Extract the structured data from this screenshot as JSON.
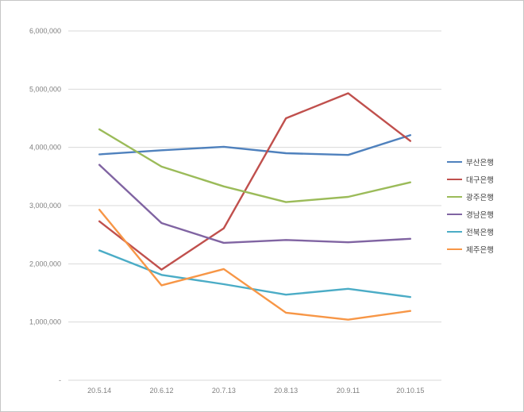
{
  "chart_data": {
    "type": "line",
    "title": "",
    "xlabel": "",
    "ylabel": "",
    "grid": true,
    "legend_position": "right",
    "ylim": [
      0,
      6000000
    ],
    "ytick_step": 1000000,
    "ytick_labels": [
      "-",
      "1,000,000",
      "2,000,000",
      "3,000,000",
      "4,000,000",
      "5,000,000",
      "6,000,000"
    ],
    "x": [
      "20.5.14",
      "20.6.12",
      "20.7.13",
      "20.8.13",
      "20.9.11",
      "20.10.15"
    ],
    "series": [
      {
        "name": "부산은행",
        "color": "#4F81BD",
        "values": [
          3880000,
          3950000,
          4010000,
          3900000,
          3870000,
          4210000
        ]
      },
      {
        "name": "대구은행",
        "color": "#C0504D",
        "values": [
          2730000,
          1900000,
          2610000,
          4500000,
          4930000,
          4110000
        ]
      },
      {
        "name": "광주은행",
        "color": "#9BBB59",
        "values": [
          4310000,
          3670000,
          3330000,
          3060000,
          3150000,
          3400000
        ]
      },
      {
        "name": "경남은행",
        "color": "#8064A2",
        "values": [
          3700000,
          2700000,
          2360000,
          2410000,
          2370000,
          2430000
        ]
      },
      {
        "name": "전북은행",
        "color": "#4BACC6",
        "values": [
          2230000,
          1810000,
          1650000,
          1470000,
          1570000,
          1430000
        ]
      },
      {
        "name": "제주은행",
        "color": "#F79646",
        "values": [
          2930000,
          1630000,
          1910000,
          1160000,
          1040000,
          1190000
        ]
      }
    ]
  },
  "colors": {
    "grid": "#D9D9D9",
    "axis_text": "#7F7F7F",
    "legend_text": "#3F3F3F",
    "background": "#FFFFFF",
    "frame_border": "#C6C6C6"
  }
}
